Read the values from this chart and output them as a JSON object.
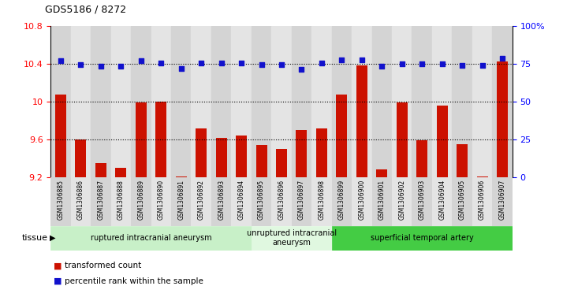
{
  "title": "GDS5186 / 8272",
  "categories": [
    "GSM1306885",
    "GSM1306886",
    "GSM1306887",
    "GSM1306888",
    "GSM1306889",
    "GSM1306890",
    "GSM1306891",
    "GSM1306892",
    "GSM1306893",
    "GSM1306894",
    "GSM1306895",
    "GSM1306896",
    "GSM1306897",
    "GSM1306898",
    "GSM1306899",
    "GSM1306900",
    "GSM1306901",
    "GSM1306902",
    "GSM1306903",
    "GSM1306904",
    "GSM1306905",
    "GSM1306906",
    "GSM1306907"
  ],
  "bar_values": [
    10.07,
    9.6,
    9.35,
    9.3,
    9.99,
    10.0,
    9.21,
    9.72,
    9.62,
    9.64,
    9.54,
    9.5,
    9.7,
    9.72,
    10.07,
    10.38,
    9.28,
    9.99,
    9.59,
    9.96,
    9.55,
    9.21,
    10.42
  ],
  "dot_values": [
    10.43,
    10.39,
    10.37,
    10.37,
    10.43,
    10.41,
    10.35,
    10.41,
    10.41,
    10.41,
    10.39,
    10.39,
    10.34,
    10.41,
    10.44,
    10.44,
    10.37,
    10.4,
    10.4,
    10.4,
    10.38,
    10.38,
    10.46
  ],
  "bar_color": "#cc1100",
  "dot_color": "#1111cc",
  "ylim_left": [
    9.2,
    10.8
  ],
  "ylim_right": [
    0,
    100
  ],
  "yticks_left": [
    9.2,
    9.6,
    10.0,
    10.4,
    10.8
  ],
  "ytick_labels_left": [
    "9.2",
    "9.6",
    "10",
    "10.4",
    "10.8"
  ],
  "yticks_right": [
    0,
    25,
    50,
    75,
    100
  ],
  "ytick_labels_right": [
    "0",
    "25",
    "50",
    "75",
    "100%"
  ],
  "hlines": [
    9.6,
    10.0,
    10.4
  ],
  "groups": [
    {
      "label": "ruptured intracranial aneurysm",
      "start": 0,
      "end": 10,
      "color": "#c8f0c8"
    },
    {
      "label": "unruptured intracranial\naneurysm",
      "start": 10,
      "end": 14,
      "color": "#e0f8e0"
    },
    {
      "label": "superficial temporal artery",
      "start": 14,
      "end": 23,
      "color": "#44cc44"
    }
  ],
  "tissue_label": "tissue",
  "legend_bar_label": "transformed count",
  "legend_dot_label": "percentile rank within the sample",
  "bg_color": "#ffffff",
  "tick_bg_even": "#d4d4d4",
  "tick_bg_odd": "#e4e4e4"
}
